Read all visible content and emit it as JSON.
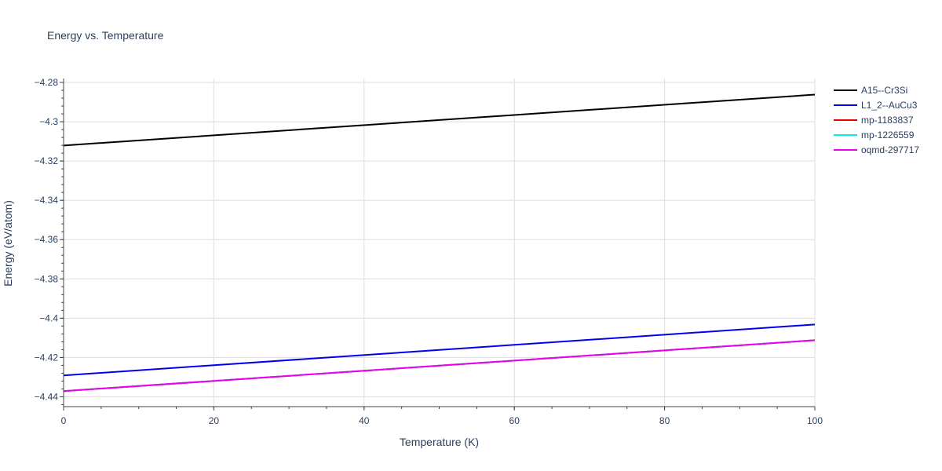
{
  "chart_data": {
    "type": "line",
    "title": "Energy vs. Temperature",
    "xlabel": "Temperature (K)",
    "ylabel": "Energy (eV/atom)",
    "xlim": [
      0,
      100
    ],
    "ylim": [
      -4.445,
      -4.278
    ],
    "x_ticks": [
      0,
      20,
      40,
      60,
      80,
      100
    ],
    "x_tick_labels": [
      "0",
      "20",
      "40",
      "60",
      "80",
      "100"
    ],
    "y_ticks": [
      -4.44,
      -4.42,
      -4.4,
      -4.38,
      -4.36,
      -4.34,
      -4.32,
      -4.3,
      -4.28
    ],
    "y_tick_labels": [
      "−4.44",
      "−4.42",
      "−4.4",
      "−4.38",
      "−4.36",
      "−4.34",
      "−4.32",
      "−4.3",
      "−4.28"
    ],
    "grid": true,
    "legend_position": "top-right, outside plot",
    "series": [
      {
        "name": "A15--Cr3Si",
        "color": "#000000",
        "x": [
          0,
          100
        ],
        "values": [
          -4.3121,
          -4.2862
        ]
      },
      {
        "name": "L1_2--AuCu3",
        "color": "#0000ee",
        "x": [
          0,
          100
        ],
        "values": [
          -4.4291,
          -4.4032
        ]
      },
      {
        "name": "mp-1183837",
        "color": "#ee0000",
        "x": [
          0,
          100
        ],
        "values": [
          -4.4371,
          -4.4112
        ]
      },
      {
        "name": "mp-1226559",
        "color": "#00eeee",
        "x": [
          0,
          100
        ],
        "values": [
          -4.4371,
          -4.4112
        ]
      },
      {
        "name": "oqmd-297717",
        "color": "#ee00ee",
        "x": [
          0,
          100
        ],
        "values": [
          -4.4371,
          -4.4112
        ]
      }
    ]
  }
}
